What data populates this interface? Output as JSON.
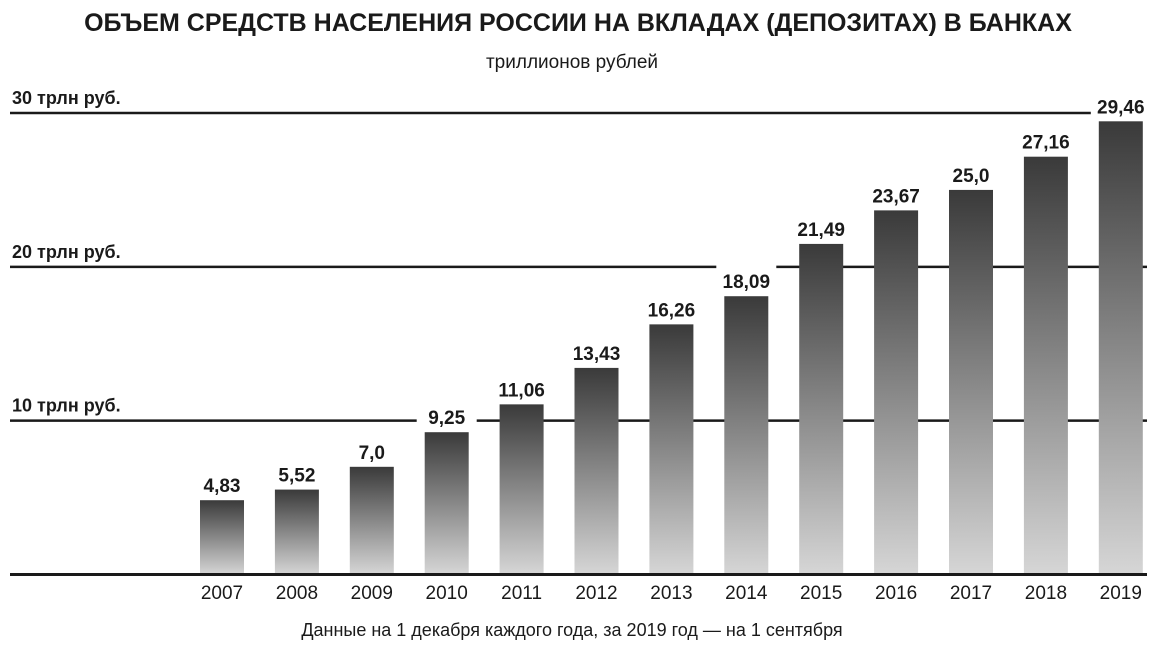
{
  "chart_data": {
    "type": "bar",
    "title": "ОБЪЕМ СРЕДСТВ НАСЕЛЕНИЯ РОССИИ НА ВКЛАДАХ (ДЕПОЗИТАХ) В БАНКАХ",
    "subtitle": "триллионов рублей",
    "footnote": "Данные на 1 декабря каждого года, за 2019 год — на 1 сентября",
    "categories": [
      "2007",
      "2008",
      "2009",
      "2010",
      "2011",
      "2012",
      "2013",
      "2014",
      "2015",
      "2016",
      "2017",
      "2018",
      "2019"
    ],
    "values": [
      4.83,
      5.52,
      7.0,
      9.25,
      11.06,
      13.43,
      16.26,
      18.09,
      21.49,
      23.67,
      25.0,
      27.16,
      29.46
    ],
    "value_labels": [
      "4,83",
      "5,52",
      "7,0",
      "9,25",
      "11,06",
      "13,43",
      "16,26",
      "18,09",
      "21,49",
      "23,67",
      "25,0",
      "27,16",
      "29,46"
    ],
    "gridlines": [
      {
        "value": 10,
        "label": "10 трлн руб."
      },
      {
        "value": 20,
        "label": "20 трлн руб."
      },
      {
        "value": 30,
        "label": "30 трлн руб."
      }
    ],
    "ylim": [
      0,
      30
    ],
    "grid": true,
    "legend": "none",
    "colors": {
      "bar_top": "#3a3a3a",
      "bar_bottom": "#d6d6d6",
      "line": "#1a1a1a"
    }
  }
}
